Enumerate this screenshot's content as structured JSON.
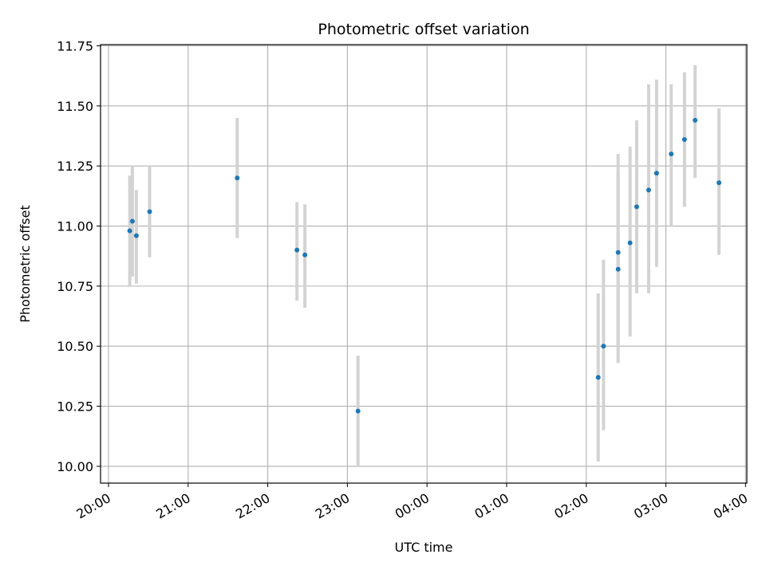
{
  "chart_data": {
    "type": "scatter",
    "title": "Photometric offset variation",
    "xlabel": "UTC time",
    "ylabel": "Photometric offset",
    "x_unit": "UTC hour of night (20:00 → 04:00)",
    "xlim": [
      "19:54",
      "04:01"
    ],
    "ylim": [
      9.93,
      11.755
    ],
    "xticks": [
      {
        "t": "20:00",
        "label": "20:00"
      },
      {
        "t": "21:00",
        "label": "21:00"
      },
      {
        "t": "22:00",
        "label": "22:00"
      },
      {
        "t": "23:00",
        "label": "23:00"
      },
      {
        "t": "00:00",
        "label": "00:00"
      },
      {
        "t": "01:00",
        "label": "01:00"
      },
      {
        "t": "02:00",
        "label": "02:00"
      },
      {
        "t": "03:00",
        "label": "03:00"
      },
      {
        "t": "04:00",
        "label": "04:00"
      }
    ],
    "yticks": [
      10.0,
      10.25,
      10.5,
      10.75,
      11.0,
      11.25,
      11.5,
      11.75
    ],
    "ytick_labels": [
      "10.00",
      "10.25",
      "10.50",
      "10.75",
      "11.00",
      "11.25",
      "11.50",
      "11.75"
    ],
    "grid": true,
    "point_color": "#1f77b4",
    "errorbar_color": "#d3d3d3",
    "points": [
      {
        "t": "20:16",
        "y": 10.98,
        "lo": 10.75,
        "hi": 11.21
      },
      {
        "t": "20:18",
        "y": 11.02,
        "lo": 10.79,
        "hi": 11.25
      },
      {
        "t": "20:21",
        "y": 10.96,
        "lo": 10.76,
        "hi": 11.15
      },
      {
        "t": "20:31",
        "y": 11.06,
        "lo": 10.87,
        "hi": 11.25
      },
      {
        "t": "21:37",
        "y": 11.2,
        "lo": 10.95,
        "hi": 11.45
      },
      {
        "t": "22:22",
        "y": 10.9,
        "lo": 10.69,
        "hi": 11.1
      },
      {
        "t": "22:28",
        "y": 10.88,
        "lo": 10.66,
        "hi": 11.09
      },
      {
        "t": "23:08",
        "y": 10.23,
        "lo": 10.0,
        "hi": 10.46
      },
      {
        "t": "02:09",
        "y": 10.37,
        "lo": 10.02,
        "hi": 10.72
      },
      {
        "t": "02:13",
        "y": 10.5,
        "lo": 10.15,
        "hi": 10.86
      },
      {
        "t": "02:24",
        "y": 10.89,
        "lo": 10.48,
        "hi": 11.3
      },
      {
        "t": "02:24",
        "y": 10.82,
        "lo": 10.43,
        "hi": 11.22
      },
      {
        "t": "02:33",
        "y": 10.93,
        "lo": 10.54,
        "hi": 11.33
      },
      {
        "t": "02:38",
        "y": 11.08,
        "lo": 10.72,
        "hi": 11.44
      },
      {
        "t": "02:47",
        "y": 11.15,
        "lo": 10.72,
        "hi": 11.59
      },
      {
        "t": "02:53",
        "y": 11.22,
        "lo": 10.83,
        "hi": 11.61
      },
      {
        "t": "03:04",
        "y": 11.3,
        "lo": 11.0,
        "hi": 11.59
      },
      {
        "t": "03:14",
        "y": 11.36,
        "lo": 11.08,
        "hi": 11.64
      },
      {
        "t": "03:22",
        "y": 11.44,
        "lo": 11.2,
        "hi": 11.67
      },
      {
        "t": "03:40",
        "y": 11.18,
        "lo": 10.88,
        "hi": 11.49
      }
    ]
  }
}
